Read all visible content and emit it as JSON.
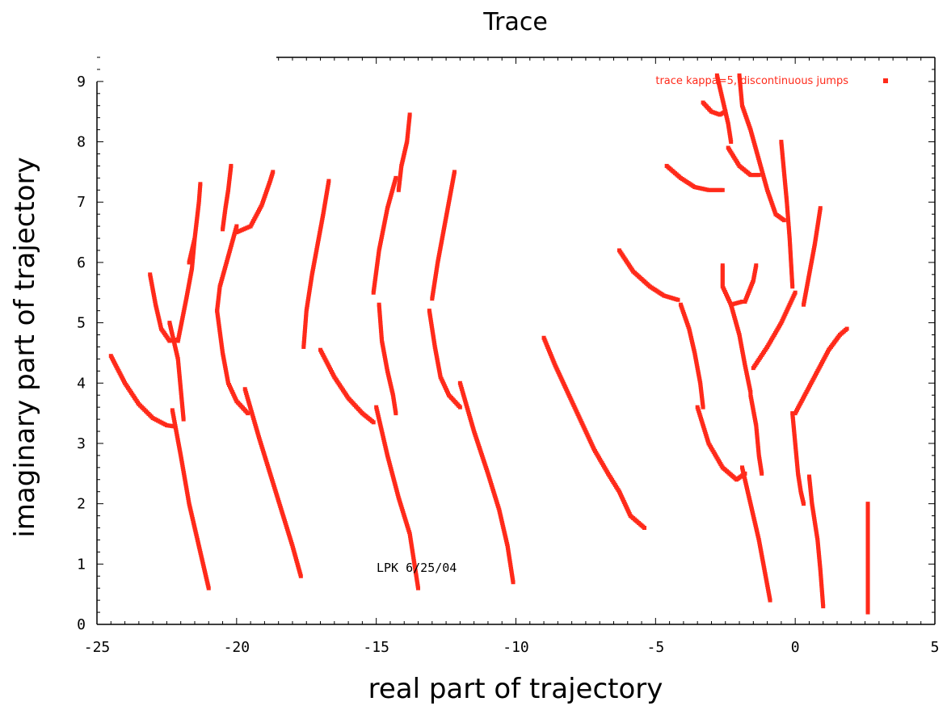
{
  "chart_data": {
    "type": "scatter",
    "title": "Trace",
    "xlabel": "real part of trajectory",
    "ylabel": "imaginary part of trajectory",
    "xlim": [
      -25,
      5
    ],
    "ylim": [
      0,
      9.4
    ],
    "x_ticks": [
      "-25",
      "-20",
      "-15",
      "-10",
      "-5",
      "0",
      "5"
    ],
    "y_ticks": [
      "0",
      "1",
      "2",
      "3",
      "4",
      "5",
      "6",
      "7",
      "8",
      "9"
    ],
    "grid": false,
    "legend_position": "top-right",
    "annotation": "LPK 6/25/04",
    "series": [
      {
        "name": "trace kappa=5, discontinuous jumps",
        "color": "#ff2a1a",
        "marker": "dot",
        "segments": [
          [
            [
              -24.5,
              4.45
            ],
            [
              -24,
              4.0
            ],
            [
              -23.5,
              3.65
            ],
            [
              -23,
              3.42
            ],
            [
              -22.5,
              3.3
            ],
            [
              -22.2,
              3.28
            ]
          ],
          [
            [
              -22.3,
              3.55
            ],
            [
              -22.0,
              2.8
            ],
            [
              -21.7,
              2.0
            ],
            [
              -21.4,
              1.4
            ],
            [
              -21.2,
              1.0
            ],
            [
              -21.0,
              0.6
            ]
          ],
          [
            [
              -23.1,
              5.8
            ],
            [
              -22.9,
              5.3
            ],
            [
              -22.7,
              4.9
            ],
            [
              -22.4,
              4.7
            ],
            [
              -22.2,
              4.72
            ]
          ],
          [
            [
              -22.4,
              5.0
            ],
            [
              -22.1,
              4.4
            ],
            [
              -22.0,
              3.9
            ],
            [
              -21.9,
              3.4
            ]
          ],
          [
            [
              -22.1,
              4.7
            ],
            [
              -21.8,
              5.4
            ],
            [
              -21.6,
              5.9
            ],
            [
              -21.5,
              6.4
            ]
          ],
          [
            [
              -21.7,
              6.0
            ],
            [
              -21.5,
              6.4
            ],
            [
              -21.35,
              7.0
            ],
            [
              -21.3,
              7.3
            ]
          ],
          [
            [
              -20.2,
              7.6
            ],
            [
              -20.3,
              7.2
            ],
            [
              -20.4,
              6.9
            ],
            [
              -20.5,
              6.55
            ]
          ],
          [
            [
              -20.0,
              6.6
            ],
            [
              -20.3,
              6.1
            ],
            [
              -20.6,
              5.6
            ],
            [
              -20.7,
              5.2
            ]
          ],
          [
            [
              -20.7,
              5.2
            ],
            [
              -20.5,
              4.5
            ],
            [
              -20.3,
              4.0
            ],
            [
              -20.0,
              3.7
            ],
            [
              -19.6,
              3.5
            ]
          ],
          [
            [
              -20.0,
              6.5
            ],
            [
              -19.5,
              6.6
            ],
            [
              -19.1,
              6.95
            ],
            [
              -18.8,
              7.35
            ],
            [
              -18.7,
              7.5
            ]
          ],
          [
            [
              -19.7,
              3.9
            ],
            [
              -19.2,
              3.1
            ],
            [
              -18.8,
              2.5
            ],
            [
              -18.4,
              1.9
            ],
            [
              -18.0,
              1.3
            ],
            [
              -17.7,
              0.8
            ]
          ],
          [
            [
              -16.7,
              7.35
            ],
            [
              -16.9,
              6.8
            ],
            [
              -17.1,
              6.3
            ],
            [
              -17.3,
              5.8
            ],
            [
              -17.5,
              5.2
            ],
            [
              -17.6,
              4.6
            ]
          ],
          [
            [
              -17.0,
              4.55
            ],
            [
              -16.5,
              4.1
            ],
            [
              -16.0,
              3.75
            ],
            [
              -15.5,
              3.5
            ],
            [
              -15.1,
              3.35
            ]
          ],
          [
            [
              -15.0,
              3.6
            ],
            [
              -14.6,
              2.8
            ],
            [
              -14.2,
              2.1
            ],
            [
              -13.8,
              1.5
            ],
            [
              -13.5,
              0.6
            ]
          ],
          [
            [
              -14.9,
              5.3
            ],
            [
              -14.8,
              4.7
            ],
            [
              -14.6,
              4.2
            ],
            [
              -14.4,
              3.8
            ],
            [
              -14.3,
              3.5
            ]
          ],
          [
            [
              -15.1,
              5.5
            ],
            [
              -14.9,
              6.2
            ],
            [
              -14.6,
              6.9
            ],
            [
              -14.3,
              7.4
            ]
          ],
          [
            [
              -13.8,
              8.45
            ],
            [
              -13.9,
              8.0
            ],
            [
              -14.1,
              7.6
            ],
            [
              -14.2,
              7.2
            ]
          ],
          [
            [
              -12.2,
              7.5
            ],
            [
              -12.4,
              7.0
            ],
            [
              -12.6,
              6.5
            ],
            [
              -12.8,
              6.0
            ],
            [
              -13.0,
              5.4
            ]
          ],
          [
            [
              -13.1,
              5.2
            ],
            [
              -12.9,
              4.6
            ],
            [
              -12.7,
              4.1
            ],
            [
              -12.4,
              3.8
            ],
            [
              -12.0,
              3.6
            ]
          ],
          [
            [
              -12.0,
              4.0
            ],
            [
              -11.5,
              3.2
            ],
            [
              -11.0,
              2.5
            ],
            [
              -10.6,
              1.9
            ],
            [
              -10.3,
              1.3
            ],
            [
              -10.1,
              0.7
            ]
          ],
          [
            [
              -9.0,
              4.75
            ],
            [
              -8.6,
              4.3
            ],
            [
              -8.2,
              3.9
            ],
            [
              -7.7,
              3.4
            ],
            [
              -7.2,
              2.9
            ],
            [
              -6.7,
              2.5
            ],
            [
              -6.3,
              2.2
            ],
            [
              -5.9,
              1.8
            ],
            [
              -5.4,
              1.6
            ]
          ],
          [
            [
              -6.3,
              6.2
            ],
            [
              -5.8,
              5.85
            ],
            [
              -5.2,
              5.6
            ],
            [
              -4.7,
              5.45
            ],
            [
              -4.2,
              5.38
            ]
          ],
          [
            [
              -4.6,
              7.6
            ],
            [
              -4.1,
              7.4
            ],
            [
              -3.6,
              7.25
            ],
            [
              -3.1,
              7.2
            ],
            [
              -2.6,
              7.2
            ]
          ],
          [
            [
              -3.3,
              8.65
            ],
            [
              -3.0,
              8.5
            ],
            [
              -2.7,
              8.45
            ],
            [
              -2.5,
              8.5
            ]
          ],
          [
            [
              -2.8,
              9.1
            ],
            [
              -2.6,
              8.7
            ],
            [
              -2.4,
              8.3
            ],
            [
              -2.3,
              8.0
            ]
          ],
          [
            [
              -2.4,
              7.9
            ],
            [
              -2.0,
              7.6
            ],
            [
              -1.6,
              7.45
            ],
            [
              -1.3,
              7.45
            ]
          ],
          [
            [
              -2.0,
              9.1
            ],
            [
              -1.9,
              8.6
            ],
            [
              -1.6,
              8.2
            ],
            [
              -1.3,
              7.7
            ],
            [
              -1.0,
              7.2
            ],
            [
              -0.7,
              6.8
            ],
            [
              -0.4,
              6.7
            ]
          ],
          [
            [
              -0.5,
              8.0
            ],
            [
              -0.4,
              7.5
            ],
            [
              -0.3,
              7.0
            ],
            [
              -0.2,
              6.4
            ],
            [
              -0.1,
              5.6
            ]
          ],
          [
            [
              0.3,
              5.3
            ],
            [
              0.5,
              5.8
            ],
            [
              0.7,
              6.3
            ],
            [
              0.9,
              6.9
            ]
          ],
          [
            [
              -4.1,
              5.3
            ],
            [
              -3.8,
              4.9
            ],
            [
              -3.6,
              4.5
            ],
            [
              -3.4,
              4.0
            ],
            [
              -3.3,
              3.6
            ]
          ],
          [
            [
              -2.6,
              5.95
            ],
            [
              -2.6,
              5.6
            ],
            [
              -2.3,
              5.3
            ],
            [
              -1.9,
              5.35
            ]
          ],
          [
            [
              -2.3,
              5.3
            ],
            [
              -2.0,
              4.8
            ],
            [
              -1.8,
              4.3
            ],
            [
              -1.6,
              3.85
            ]
          ],
          [
            [
              -1.8,
              5.35
            ],
            [
              -1.5,
              5.7
            ],
            [
              -1.4,
              5.95
            ]
          ],
          [
            [
              -1.5,
              4.25
            ],
            [
              -1.0,
              4.6
            ],
            [
              -0.5,
              5.0
            ],
            [
              0.0,
              5.5
            ]
          ],
          [
            [
              -3.5,
              3.6
            ],
            [
              -3.1,
              3.0
            ],
            [
              -2.6,
              2.6
            ],
            [
              -2.1,
              2.4
            ],
            [
              -1.8,
              2.5
            ]
          ],
          [
            [
              -1.6,
              3.8
            ],
            [
              -1.4,
              3.3
            ],
            [
              -1.3,
              2.8
            ],
            [
              -1.2,
              2.5
            ]
          ],
          [
            [
              -1.9,
              2.6
            ],
            [
              -1.6,
              2.0
            ],
            [
              -1.3,
              1.4
            ],
            [
              -1.1,
              0.9
            ],
            [
              -0.9,
              0.4
            ]
          ],
          [
            [
              -0.1,
              3.5
            ],
            [
              0.0,
              3.0
            ],
            [
              0.1,
              2.5
            ],
            [
              0.2,
              2.2
            ],
            [
              0.3,
              2.0
            ]
          ],
          [
            [
              0.0,
              3.5
            ],
            [
              0.4,
              3.85
            ],
            [
              0.8,
              4.2
            ],
            [
              1.2,
              4.55
            ],
            [
              1.6,
              4.8
            ],
            [
              1.85,
              4.9
            ]
          ],
          [
            [
              0.5,
              2.45
            ],
            [
              0.6,
              2.0
            ],
            [
              0.8,
              1.4
            ],
            [
              0.9,
              0.9
            ],
            [
              1.0,
              0.3
            ]
          ],
          [
            [
              2.6,
              2.0
            ],
            [
              2.6,
              1.5
            ],
            [
              2.6,
              1.0
            ],
            [
              2.6,
              0.5
            ],
            [
              2.6,
              0.2
            ]
          ]
        ]
      }
    ]
  }
}
